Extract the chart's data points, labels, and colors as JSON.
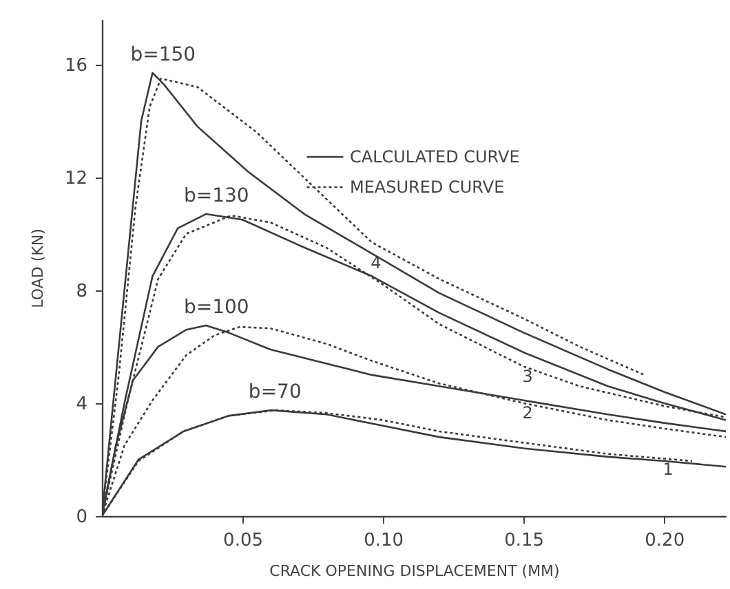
{
  "chart_data": {
    "type": "line",
    "xlabel": "CRACK OPENING DISPLACEMENT (MM)",
    "ylabel": "LOAD (KN)",
    "xlim": [
      0,
      0.222
    ],
    "xticks": [
      {
        "value": 0.05,
        "label": "0.05"
      },
      {
        "value": 0.1,
        "label": "0.10"
      },
      {
        "value": 0.15,
        "label": "0.15"
      },
      {
        "value": 0.2,
        "label": "0.20"
      }
    ],
    "ylim": [
      0,
      17.6
    ],
    "yticks": [
      0,
      4,
      8,
      12,
      16
    ],
    "grid": false,
    "legend": "top right",
    "marker": "none",
    "series": [
      {
        "name": "CALCULATED CURVE",
        "color": "#3a3a3a",
        "line_style": "solid",
        "x": [
          0,
          0.005,
          0.01,
          0.014,
          0.018,
          0.022,
          0.034,
          0.052,
          0.072,
          0.096,
          0.12,
          0.15,
          0.18,
          0.2,
          0.222
        ],
        "values": [
          0,
          5,
          10,
          14,
          15.7,
          15.3,
          13.8,
          12.2,
          10.7,
          9.3,
          7.9,
          6.5,
          5.2,
          4.4,
          3.6
        ]
      },
      {
        "name": "MEASURED CURVE",
        "color": "#3a3a3a",
        "line_style": "dotted",
        "x": [
          0,
          0.006,
          0.012,
          0.017,
          0.021,
          0.034,
          0.055,
          0.076,
          0.096,
          0.12,
          0.15,
          0.17,
          0.193
        ],
        "values": [
          0,
          5,
          11,
          14.5,
          15.5,
          15.2,
          13.6,
          11.6,
          9.7,
          8.4,
          7,
          6,
          5
        ]
      },
      {
        "color": "#3a3a3a",
        "line_style": "solid",
        "x": [
          0,
          0.008,
          0.018,
          0.027,
          0.037,
          0.05,
          0.07,
          0.096,
          0.12,
          0.15,
          0.18,
          0.2,
          0.222
        ],
        "values": [
          0,
          4,
          8.5,
          10.2,
          10.7,
          10.5,
          9.6,
          8.5,
          7.2,
          5.8,
          4.6,
          4,
          3.4
        ]
      },
      {
        "color": "#3a3a3a",
        "line_style": "dotted",
        "x": [
          0,
          0.009,
          0.02,
          0.03,
          0.046,
          0.06,
          0.08,
          0.1,
          0.12,
          0.15,
          0.17,
          0.2,
          0.222
        ],
        "values": [
          0,
          4,
          8.4,
          10,
          10.65,
          10.4,
          9.5,
          8.2,
          6.8,
          5.3,
          4.6,
          3.9,
          3.5
        ]
      },
      {
        "color": "#3a3a3a",
        "line_style": "solid",
        "x": [
          0,
          0.005,
          0.011,
          0.02,
          0.03,
          0.037,
          0.045,
          0.06,
          0.08,
          0.096,
          0.12,
          0.15,
          0.18,
          0.2,
          0.222
        ],
        "values": [
          0,
          2.5,
          4.8,
          6,
          6.6,
          6.75,
          6.5,
          5.9,
          5.4,
          5,
          4.6,
          4.1,
          3.6,
          3.3,
          3
        ]
      },
      {
        "color": "#3a3a3a",
        "line_style": "dotted",
        "x": [
          0,
          0.008,
          0.018,
          0.03,
          0.04,
          0.049,
          0.06,
          0.08,
          0.096,
          0.12,
          0.15,
          0.18,
          0.2,
          0.222
        ],
        "values": [
          0,
          2.5,
          4.1,
          5.7,
          6.4,
          6.7,
          6.65,
          6.1,
          5.5,
          4.7,
          4,
          3.4,
          3.1,
          2.8
        ]
      },
      {
        "color": "#3a3a3a",
        "line_style": "solid",
        "x": [
          0,
          0.013,
          0.029,
          0.045,
          0.06,
          0.08,
          0.1,
          0.12,
          0.15,
          0.18,
          0.2,
          0.222
        ],
        "values": [
          0,
          2,
          3,
          3.55,
          3.75,
          3.6,
          3.2,
          2.8,
          2.4,
          2.1,
          1.95,
          1.75
        ]
      },
      {
        "color": "#3a3a3a",
        "line_style": "dotted",
        "x": [
          0,
          0.013,
          0.029,
          0.045,
          0.062,
          0.08,
          0.1,
          0.12,
          0.15,
          0.18,
          0.21
        ],
        "values": [
          0,
          1.95,
          3,
          3.55,
          3.75,
          3.65,
          3.4,
          3,
          2.6,
          2.2,
          1.95
        ]
      }
    ],
    "annotations": [
      {
        "text": "b=150",
        "x": 0.018,
        "y": 15.7
      },
      {
        "text": "b=130",
        "x": 0.037,
        "y": 10.7
      },
      {
        "text": "b=100",
        "x": 0.037,
        "y": 6.75
      },
      {
        "text": "b=70",
        "x": 0.06,
        "y": 3.75
      },
      {
        "text": "4",
        "x": 0.096,
        "y": 9.3
      },
      {
        "text": "3",
        "x": 0.15,
        "y": 5.3
      },
      {
        "text": "2",
        "x": 0.15,
        "y": 4.0
      },
      {
        "text": "1",
        "x": 0.2,
        "y": 2.0
      }
    ]
  }
}
